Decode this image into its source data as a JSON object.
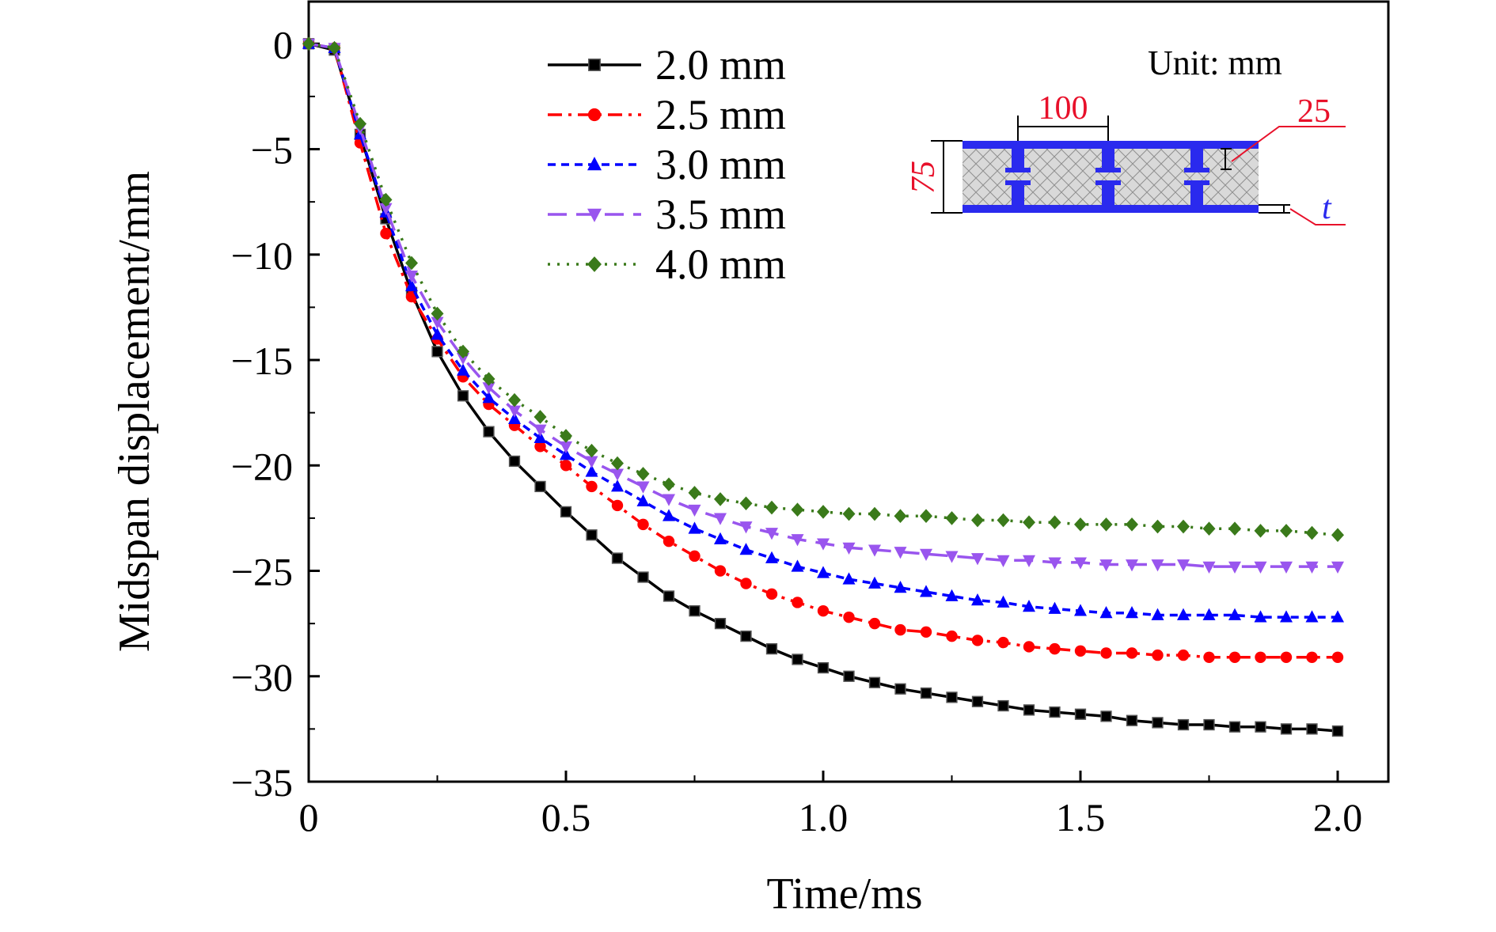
{
  "chart_data": {
    "type": "line",
    "xlabel": "Time/ms",
    "ylabel": "Midspan displacement/mm",
    "xlim": [
      0,
      2.1
    ],
    "ylim": [
      -35,
      2
    ],
    "x_ticks": [
      0,
      0.5,
      1.0,
      1.5,
      2.0
    ],
    "x_tick_labels": [
      "0",
      "0.5",
      "1.0",
      "1.5",
      "2.0"
    ],
    "y_ticks": [
      0,
      -5,
      -10,
      -15,
      -20,
      -25,
      -30,
      -35
    ],
    "y_tick_labels": [
      "0",
      "−5",
      "−10",
      "−15",
      "−20",
      "−25",
      "−30",
      "−35"
    ],
    "grid": false,
    "legend_position": "top-center",
    "x": [
      0,
      0.05,
      0.1,
      0.15,
      0.2,
      0.25,
      0.3,
      0.35,
      0.4,
      0.45,
      0.5,
      0.55,
      0.6,
      0.65,
      0.7,
      0.75,
      0.8,
      0.85,
      0.9,
      0.95,
      1.0,
      1.05,
      1.1,
      1.15,
      1.2,
      1.25,
      1.3,
      1.35,
      1.4,
      1.45,
      1.5,
      1.55,
      1.6,
      1.65,
      1.7,
      1.75,
      1.8,
      1.85,
      1.9,
      1.95,
      2.0
    ],
    "series": [
      {
        "name": "2.0 mm",
        "color": "#000000",
        "marker": "square",
        "dash": "solid",
        "values": [
          0,
          -0.3,
          -4.3,
          -8.3,
          -11.8,
          -14.6,
          -16.7,
          -18.4,
          -19.8,
          -21.0,
          -22.2,
          -23.3,
          -24.4,
          -25.3,
          -26.2,
          -26.9,
          -27.5,
          -28.1,
          -28.7,
          -29.2,
          -29.6,
          -30.0,
          -30.3,
          -30.6,
          -30.8,
          -31.0,
          -31.2,
          -31.4,
          -31.6,
          -31.7,
          -31.8,
          -31.9,
          -32.1,
          -32.2,
          -32.3,
          -32.3,
          -32.4,
          -32.4,
          -32.5,
          -32.5,
          -32.6
        ]
      },
      {
        "name": "2.5 mm",
        "color": "#ff0000",
        "marker": "circle",
        "dash": "dashdot",
        "values": [
          0,
          -0.2,
          -4.7,
          -9.0,
          -12.0,
          -14.0,
          -15.8,
          -17.1,
          -18.1,
          -19.1,
          -20.0,
          -21.0,
          -21.9,
          -22.8,
          -23.6,
          -24.3,
          -25.0,
          -25.6,
          -26.1,
          -26.5,
          -26.9,
          -27.2,
          -27.5,
          -27.8,
          -27.9,
          -28.1,
          -28.3,
          -28.4,
          -28.6,
          -28.7,
          -28.8,
          -28.9,
          -28.9,
          -29.0,
          -29.0,
          -29.1,
          -29.1,
          -29.1,
          -29.1,
          -29.1,
          -29.1
        ]
      },
      {
        "name": "3.0 mm",
        "color": "#0000ff",
        "marker": "triangle-up",
        "dash": "dash",
        "values": [
          0,
          -0.2,
          -4.3,
          -8.0,
          -11.5,
          -13.8,
          -15.5,
          -16.8,
          -17.8,
          -18.7,
          -19.5,
          -20.3,
          -21.0,
          -21.7,
          -22.4,
          -23.0,
          -23.5,
          -24.0,
          -24.4,
          -24.8,
          -25.1,
          -25.4,
          -25.6,
          -25.8,
          -26.0,
          -26.2,
          -26.4,
          -26.5,
          -26.7,
          -26.8,
          -26.9,
          -27.0,
          -27.0,
          -27.1,
          -27.1,
          -27.1,
          -27.1,
          -27.2,
          -27.2,
          -27.2,
          -27.2
        ]
      },
      {
        "name": "3.5 mm",
        "color": "#9955ee",
        "marker": "triangle-down",
        "dash": "longdash",
        "values": [
          0,
          -0.2,
          -4.0,
          -7.8,
          -11.0,
          -13.2,
          -14.9,
          -16.3,
          -17.4,
          -18.3,
          -19.1,
          -19.8,
          -20.4,
          -21.0,
          -21.6,
          -22.1,
          -22.5,
          -22.9,
          -23.2,
          -23.5,
          -23.7,
          -23.9,
          -24.0,
          -24.1,
          -24.2,
          -24.3,
          -24.4,
          -24.5,
          -24.5,
          -24.6,
          -24.6,
          -24.7,
          -24.7,
          -24.7,
          -24.7,
          -24.8,
          -24.8,
          -24.8,
          -24.8,
          -24.8,
          -24.8
        ]
      },
      {
        "name": "4.0 mm",
        "color": "#3a7a1a",
        "marker": "diamond",
        "dash": "dot",
        "values": [
          0,
          -0.2,
          -3.8,
          -7.4,
          -10.4,
          -12.8,
          -14.6,
          -15.9,
          -16.9,
          -17.7,
          -18.6,
          -19.3,
          -19.9,
          -20.4,
          -20.9,
          -21.3,
          -21.6,
          -21.8,
          -22.0,
          -22.1,
          -22.2,
          -22.3,
          -22.3,
          -22.4,
          -22.4,
          -22.5,
          -22.6,
          -22.6,
          -22.7,
          -22.7,
          -22.8,
          -22.8,
          -22.8,
          -22.9,
          -22.9,
          -23.0,
          -23.0,
          -23.1,
          -23.1,
          -23.2,
          -23.3
        ]
      }
    ]
  },
  "inset": {
    "unit_label": "Unit: mm",
    "dim_width": "100",
    "dim_height": "75",
    "dim_flange": "25",
    "dim_thickness": "t",
    "dim_color": "#e8102a",
    "panel_color": "#2a2aee"
  }
}
